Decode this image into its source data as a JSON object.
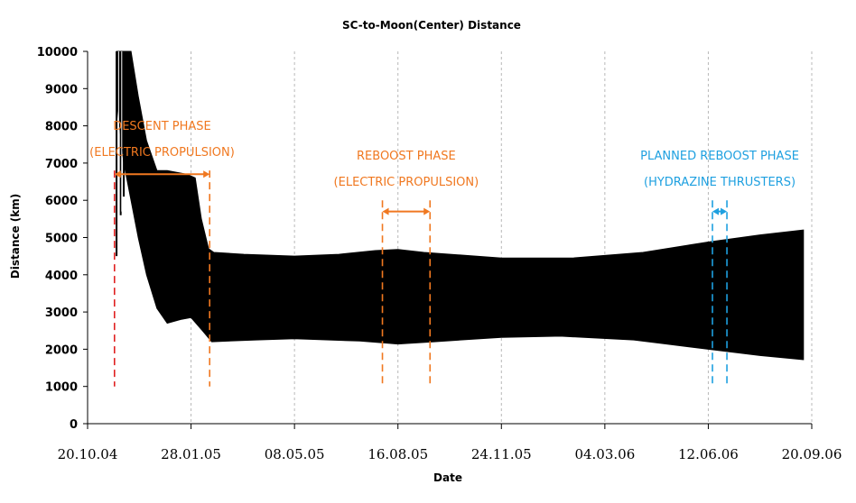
{
  "chart_data": {
    "type": "area",
    "title": "SC-to-Moon(Center) Distance",
    "xlabel": "Date",
    "ylabel": "Distance (km)",
    "ylim": [
      0,
      10000
    ],
    "yticks": [
      0,
      1000,
      2000,
      3000,
      4000,
      5000,
      6000,
      7000,
      8000,
      9000,
      10000
    ],
    "xlim": [
      "2004-10-20",
      "2006-09-20"
    ],
    "xticks": [
      {
        "date": "2004-10-20",
        "label": "20.10.04"
      },
      {
        "date": "2005-01-28",
        "label": "28.01.05"
      },
      {
        "date": "2005-05-08",
        "label": "08.05.05"
      },
      {
        "date": "2005-08-16",
        "label": "16.08.05"
      },
      {
        "date": "2005-11-24",
        "label": "24.11.05"
      },
      {
        "date": "2006-03-04",
        "label": "04.03.06"
      },
      {
        "date": "2006-06-12",
        "label": "12.06.06"
      },
      {
        "date": "2006-09-20",
        "label": "20.09.06"
      }
    ],
    "grid": "vertical",
    "band_color": "#000000",
    "upper": [
      {
        "date": "2004-11-17",
        "value": 10000
      },
      {
        "date": "2004-12-01",
        "value": 10000
      },
      {
        "date": "2004-12-08",
        "value": 8800
      },
      {
        "date": "2004-12-16",
        "value": 7600
      },
      {
        "date": "2004-12-26",
        "value": 6800
      },
      {
        "date": "2005-01-05",
        "value": 6800
      },
      {
        "date": "2005-01-24",
        "value": 6700
      },
      {
        "date": "2005-02-01",
        "value": 6600
      },
      {
        "date": "2005-02-07",
        "value": 5500
      },
      {
        "date": "2005-02-14",
        "value": 4700
      },
      {
        "date": "2005-02-19",
        "value": 4600
      },
      {
        "date": "2005-03-20",
        "value": 4550
      },
      {
        "date": "2005-05-08",
        "value": 4500
      },
      {
        "date": "2005-06-20",
        "value": 4550
      },
      {
        "date": "2005-07-25",
        "value": 4650
      },
      {
        "date": "2005-08-16",
        "value": 4680
      },
      {
        "date": "2005-09-10",
        "value": 4600
      },
      {
        "date": "2005-11-24",
        "value": 4450
      },
      {
        "date": "2006-02-01",
        "value": 4450
      },
      {
        "date": "2006-04-10",
        "value": 4600
      },
      {
        "date": "2006-06-12",
        "value": 4880
      },
      {
        "date": "2006-08-01",
        "value": 5070
      },
      {
        "date": "2006-09-12",
        "value": 5200
      }
    ],
    "lower": [
      {
        "date": "2004-11-17",
        "value": 8700
      },
      {
        "date": "2004-11-24",
        "value": 7000
      },
      {
        "date": "2004-12-01",
        "value": 6000
      },
      {
        "date": "2004-12-08",
        "value": 5000
      },
      {
        "date": "2004-12-16",
        "value": 4000
      },
      {
        "date": "2004-12-26",
        "value": 3100
      },
      {
        "date": "2005-01-05",
        "value": 2700
      },
      {
        "date": "2005-01-18",
        "value": 2800
      },
      {
        "date": "2005-01-28",
        "value": 2850
      },
      {
        "date": "2005-02-08",
        "value": 2500
      },
      {
        "date": "2005-02-17",
        "value": 2200
      },
      {
        "date": "2005-04-01",
        "value": 2250
      },
      {
        "date": "2005-05-08",
        "value": 2280
      },
      {
        "date": "2005-07-10",
        "value": 2220
      },
      {
        "date": "2005-08-16",
        "value": 2140
      },
      {
        "date": "2005-09-20",
        "value": 2200
      },
      {
        "date": "2005-11-24",
        "value": 2320
      },
      {
        "date": "2006-01-20",
        "value": 2350
      },
      {
        "date": "2006-04-01",
        "value": 2250
      },
      {
        "date": "2006-06-12",
        "value": 2000
      },
      {
        "date": "2006-08-01",
        "value": 1830
      },
      {
        "date": "2006-09-12",
        "value": 1720
      }
    ],
    "spikes": [
      {
        "date": "2004-11-17",
        "low": 4500,
        "high": 10000
      },
      {
        "date": "2004-11-21",
        "low": 5600,
        "high": 10000
      },
      {
        "date": "2004-11-24",
        "low": 6100,
        "high": 10000
      }
    ],
    "annotations": [
      {
        "lines": [
          "DESCENT PHASE",
          "(ELECTRIC PROPULSION)"
        ],
        "color": "#f07820",
        "start": "2004-11-15",
        "end": "2005-02-15",
        "arrow_value": 6700,
        "line_top": 6800,
        "line_bottom": 1000
      },
      {
        "lines": [
          "REBOOST PHASE",
          "(ELECTRIC PROPULSION)"
        ],
        "color": "#f07820",
        "start": "2005-08-01",
        "end": "2005-09-16",
        "arrow_value": 5700,
        "line_top": 6000,
        "line_bottom": 1000
      },
      {
        "lines": [
          "PLANNED REBOOST PHASE",
          "(HYDRAZINE THRUSTERS)"
        ],
        "color": "#1ea0e0",
        "start": "2006-06-16",
        "end": "2006-06-30",
        "arrow_value": 5700,
        "line_top": 6000,
        "line_bottom": 1000
      }
    ],
    "phase_start_marker": {
      "date": "2004-11-15",
      "color": "#e02020"
    }
  }
}
